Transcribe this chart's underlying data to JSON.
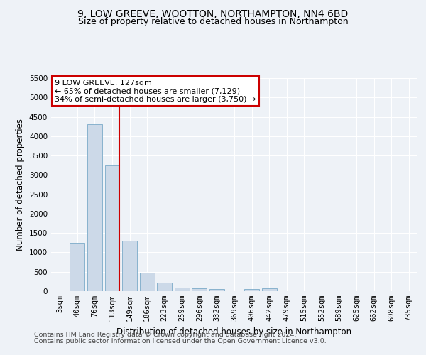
{
  "title": "9, LOW GREEVE, WOOTTON, NORTHAMPTON, NN4 6BD",
  "subtitle": "Size of property relative to detached houses in Northampton",
  "xlabel": "Distribution of detached houses by size in Northampton",
  "ylabel": "Number of detached properties",
  "categories": [
    "3sqm",
    "40sqm",
    "76sqm",
    "113sqm",
    "149sqm",
    "186sqm",
    "223sqm",
    "259sqm",
    "296sqm",
    "332sqm",
    "369sqm",
    "406sqm",
    "442sqm",
    "479sqm",
    "515sqm",
    "552sqm",
    "589sqm",
    "625sqm",
    "662sqm",
    "698sqm",
    "735sqm"
  ],
  "values": [
    0,
    1250,
    4300,
    3250,
    1300,
    475,
    220,
    100,
    65,
    50,
    5,
    50,
    65,
    0,
    0,
    0,
    0,
    0,
    0,
    0,
    0
  ],
  "bar_color": "#ccd9e8",
  "bar_edge_color": "#7aaac8",
  "annotation_line1": "9 LOW GREEVE: 127sqm",
  "annotation_line2": "← 65% of detached houses are smaller (7,129)",
  "annotation_line3": "34% of semi-detached houses are larger (3,750) →",
  "annotation_box_color": "#ffffff",
  "annotation_box_edge": "#cc0000",
  "vertical_line_color": "#cc0000",
  "ylim": [
    0,
    5500
  ],
  "yticks": [
    0,
    500,
    1000,
    1500,
    2000,
    2500,
    3000,
    3500,
    4000,
    4500,
    5000,
    5500
  ],
  "footer1": "Contains HM Land Registry data © Crown copyright and database right 2024.",
  "footer2": "Contains public sector information licensed under the Open Government Licence v3.0.",
  "background_color": "#eef2f7",
  "grid_color": "#ffffff",
  "title_fontsize": 10,
  "subtitle_fontsize": 9,
  "axis_label_fontsize": 8.5,
  "tick_fontsize": 7.5,
  "footer_fontsize": 6.8,
  "annotation_fontsize": 8
}
